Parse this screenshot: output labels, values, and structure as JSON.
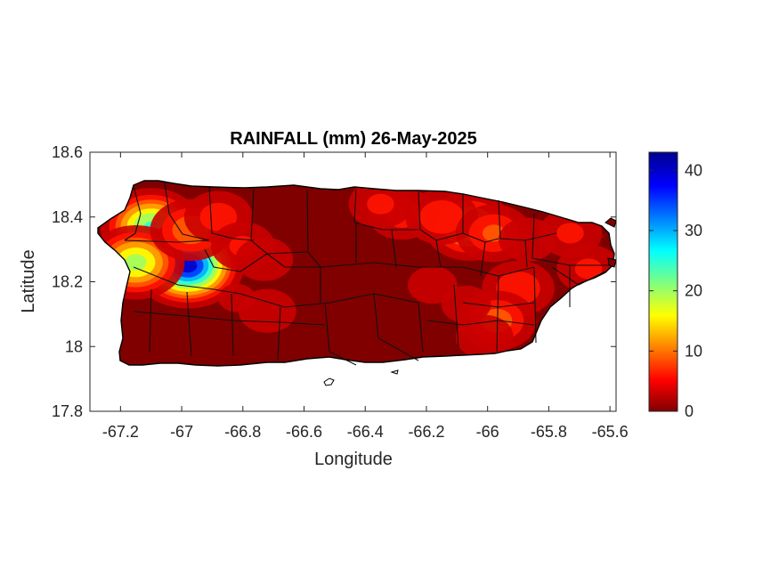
{
  "chart_data": {
    "type": "heatmap",
    "title": "RAINFALL (mm) 26-May-2025",
    "xlabel": "Longitude",
    "ylabel": "Latitude",
    "xlim": [
      -67.3,
      -65.58
    ],
    "ylim": [
      17.8,
      18.6
    ],
    "xticks": [
      -67.2,
      -67,
      -66.8,
      -66.6,
      -66.4,
      -66.2,
      -66,
      -65.8,
      -65.6
    ],
    "xtick_labels": [
      "-67.2",
      "-67",
      "-66.8",
      "-66.6",
      "-66.4",
      "-66.2",
      "-66",
      "-65.8",
      "-65.6"
    ],
    "yticks": [
      17.8,
      18,
      18.2,
      18.4,
      18.6
    ],
    "ytick_labels": [
      "17.8",
      "18",
      "18.2",
      "18.4",
      "18.6"
    ],
    "colorbar": {
      "range": [
        0,
        43
      ],
      "ticks": [
        0,
        10,
        20,
        30,
        40
      ],
      "tick_labels": [
        "0",
        "10",
        "20",
        "30",
        "40"
      ],
      "colormap": "jet",
      "stops": [
        "#800000",
        "#ff0000",
        "#ffff00",
        "#00ffff",
        "#0000ff",
        "#00008f"
      ]
    },
    "rain_centers": [
      {
        "lon": -67.06,
        "lat": 18.3,
        "value": 40
      },
      {
        "lon": -67.1,
        "lat": 18.37,
        "value": 26
      },
      {
        "lon": -66.98,
        "lat": 18.25,
        "value": 43
      },
      {
        "lon": -67.15,
        "lat": 18.26,
        "value": 22
      },
      {
        "lon": -66.97,
        "lat": 18.36,
        "value": 12
      },
      {
        "lon": -66.88,
        "lat": 18.4,
        "value": 8
      },
      {
        "lon": -66.8,
        "lat": 18.31,
        "value": 7
      },
      {
        "lon": -66.73,
        "lat": 18.27,
        "value": 6
      },
      {
        "lon": -66.72,
        "lat": 18.11,
        "value": 6
      },
      {
        "lon": -66.82,
        "lat": 18.15,
        "value": 4
      },
      {
        "lon": -66.28,
        "lat": 18.41,
        "value": 8
      },
      {
        "lon": -66.35,
        "lat": 18.44,
        "value": 7
      },
      {
        "lon": -66.06,
        "lat": 18.37,
        "value": 16
      },
      {
        "lon": -66.15,
        "lat": 18.4,
        "value": 9
      },
      {
        "lon": -65.98,
        "lat": 18.35,
        "value": 10
      },
      {
        "lon": -65.87,
        "lat": 18.33,
        "value": 6
      },
      {
        "lon": -65.73,
        "lat": 18.35,
        "value": 7
      },
      {
        "lon": -65.67,
        "lat": 18.24,
        "value": 7
      },
      {
        "lon": -65.9,
        "lat": 18.18,
        "value": 9
      },
      {
        "lon": -65.97,
        "lat": 18.08,
        "value": 11
      },
      {
        "lon": -66.18,
        "lat": 18.19,
        "value": 5
      },
      {
        "lon": -66.07,
        "lat": 18.13,
        "value": 5
      },
      {
        "lon": -66.01,
        "lat": 18.03,
        "value": 6
      }
    ]
  }
}
